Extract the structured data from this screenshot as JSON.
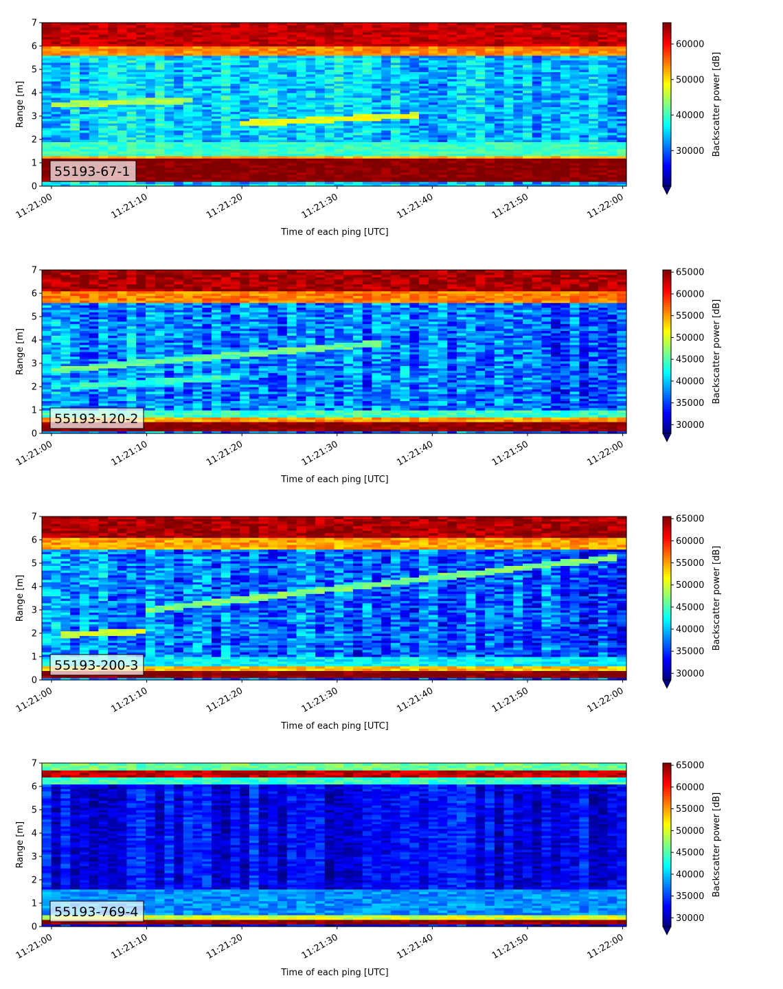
{
  "chart_data": [
    {
      "type": "heatmap",
      "station_label": "55193-67-1",
      "xlabel": "Time of each ping [UTC]",
      "ylabel": "Range [m]",
      "colorbar_label": "Backscatter power [dB]",
      "colormap": "jet",
      "colorbar_extend": "min",
      "x_ticks": [
        "11:21:00",
        "11:21:10",
        "11:21:20",
        "11:21:30",
        "11:21:40",
        "11:21:50",
        "11:22:00"
      ],
      "y_ticks": [
        0,
        1,
        2,
        3,
        4,
        5,
        6,
        7
      ],
      "ylim": [
        0,
        7
      ],
      "clim": [
        20000,
        66000
      ],
      "colorbar_ticks": [
        30000,
        40000,
        50000,
        60000
      ],
      "features": [
        {
          "type": "band",
          "y_from": 0.25,
          "y_to": 1.2,
          "value": 66000
        },
        {
          "type": "band",
          "y_from": 1.2,
          "y_to": 1.35,
          "value": 52000
        },
        {
          "type": "band",
          "y_from": 1.35,
          "y_to": 1.95,
          "value": 40000
        },
        {
          "type": "band",
          "y_from": 6.0,
          "y_to": 7.0,
          "value": 63000
        },
        {
          "type": "band",
          "y_from": 5.6,
          "y_to": 6.0,
          "value": 54000
        },
        {
          "type": "trail",
          "t_start": 20,
          "t_end": 39,
          "y_start": 2.7,
          "y_end": 3.05,
          "value": 48000
        },
        {
          "type": "trail",
          "t_start": 0,
          "t_end": 15,
          "y_start": 3.5,
          "y_end": 3.7,
          "value": 45000
        }
      ]
    },
    {
      "type": "heatmap",
      "station_label": "55193-120-2",
      "xlabel": "Time of each ping [UTC]",
      "ylabel": "Range [m]",
      "colorbar_label": "Backscatter power [dB]",
      "colormap": "jet",
      "colorbar_extend": "min",
      "x_ticks": [
        "11:21:00",
        "11:21:10",
        "11:21:20",
        "11:21:30",
        "11:21:40",
        "11:21:50",
        "11:22:00"
      ],
      "y_ticks": [
        0,
        1,
        2,
        3,
        4,
        5,
        6,
        7
      ],
      "ylim": [
        0,
        7
      ],
      "clim": [
        28000,
        65500
      ],
      "colorbar_ticks": [
        30000,
        35000,
        40000,
        45000,
        50000,
        55000,
        60000,
        65000
      ],
      "features": [
        {
          "type": "band",
          "y_from": 0.1,
          "y_to": 0.55,
          "value": 65500
        },
        {
          "type": "band",
          "y_from": 0.55,
          "y_to": 0.7,
          "value": 55000
        },
        {
          "type": "band",
          "y_from": 0.7,
          "y_to": 1.05,
          "value": 44000
        },
        {
          "type": "band",
          "y_from": 6.1,
          "y_to": 7.0,
          "value": 64000
        },
        {
          "type": "band",
          "y_from": 5.6,
          "y_to": 6.1,
          "value": 56000
        },
        {
          "type": "trail",
          "t_start": 0,
          "t_end": 35,
          "y_start": 2.7,
          "y_end": 3.9,
          "value": 46000
        },
        {
          "type": "trail",
          "t_start": 2,
          "t_end": 20,
          "y_start": 2.0,
          "y_end": 2.45,
          "value": 44000
        }
      ]
    },
    {
      "type": "heatmap",
      "station_label": "55193-200-3",
      "xlabel": "Time of each ping [UTC]",
      "ylabel": "Range [m]",
      "colorbar_label": "Backscatter power [dB]",
      "colormap": "jet",
      "colorbar_extend": "min",
      "x_ticks": [
        "11:21:00",
        "11:21:10",
        "11:21:20",
        "11:21:30",
        "11:21:40",
        "11:21:50",
        "11:22:00"
      ],
      "y_ticks": [
        0,
        1,
        2,
        3,
        4,
        5,
        6,
        7
      ],
      "ylim": [
        0,
        7
      ],
      "clim": [
        28500,
        65500
      ],
      "colorbar_ticks": [
        30000,
        35000,
        40000,
        45000,
        50000,
        55000,
        60000,
        65000
      ],
      "features": [
        {
          "type": "band",
          "y_from": 0.1,
          "y_to": 0.45,
          "value": 65500
        },
        {
          "type": "band",
          "y_from": 0.45,
          "y_to": 0.6,
          "value": 54000
        },
        {
          "type": "band",
          "y_from": 0.6,
          "y_to": 1.0,
          "value": 42000
        },
        {
          "type": "band",
          "y_from": 6.1,
          "y_to": 7.0,
          "value": 64000
        },
        {
          "type": "band",
          "y_from": 5.6,
          "y_to": 6.1,
          "value": 55000
        },
        {
          "type": "trail",
          "t_start": 10,
          "t_end": 60,
          "y_start": 3.0,
          "y_end": 5.3,
          "value": 47000
        },
        {
          "type": "trail",
          "t_start": 1,
          "t_end": 10,
          "y_start": 1.95,
          "y_end": 2.1,
          "value": 50000
        }
      ]
    },
    {
      "type": "heatmap",
      "station_label": "55193-769-4",
      "xlabel": "Time of each ping [UTC]",
      "ylabel": "Range [m]",
      "colorbar_label": "Backscatter power [dB]",
      "colormap": "jet",
      "colorbar_extend": "min",
      "x_ticks": [
        "11:21:00",
        "11:21:10",
        "11:21:20",
        "11:21:30",
        "11:21:40",
        "11:21:50",
        "11:22:00"
      ],
      "y_ticks": [
        0,
        1,
        2,
        3,
        4,
        5,
        6,
        7
      ],
      "ylim": [
        0,
        7
      ],
      "clim": [
        28000,
        65500
      ],
      "colorbar_ticks": [
        30000,
        35000,
        40000,
        45000,
        50000,
        55000,
        60000,
        65000
      ],
      "features": [
        {
          "type": "band",
          "y_from": 0.15,
          "y_to": 0.35,
          "value": 65500
        },
        {
          "type": "band",
          "y_from": 0.35,
          "y_to": 0.55,
          "value": 50000
        },
        {
          "type": "band",
          "y_from": 0.55,
          "y_to": 1.6,
          "value": 38000
        },
        {
          "type": "band",
          "y_from": 6.4,
          "y_to": 6.7,
          "value": 63000
        },
        {
          "type": "band",
          "y_from": 6.1,
          "y_to": 6.4,
          "value": 44000
        },
        {
          "type": "band",
          "y_from": 6.7,
          "y_to": 7.0,
          "value": 46000
        }
      ]
    }
  ]
}
